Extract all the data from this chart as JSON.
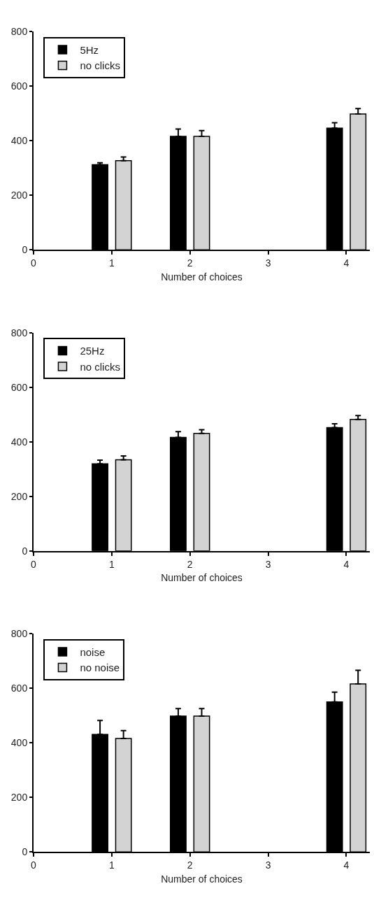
{
  "chart_data": [
    {
      "type": "bar",
      "xlabel": "Number of choices",
      "xlim": [
        0,
        4.3
      ],
      "xticks": [
        0,
        1,
        2,
        3,
        4
      ],
      "ylim": [
        0,
        800
      ],
      "yticks": [
        0,
        200,
        400,
        600,
        800
      ],
      "legend": "top left",
      "series": [
        {
          "name": "5Hz",
          "color": "#000000",
          "x": [
            0.85,
            1.85,
            3.85
          ],
          "values": [
            312,
            416,
            446
          ],
          "errors": [
            [
              312,
              319
            ],
            [
              416,
              443
            ],
            [
              446,
              466
            ]
          ]
        },
        {
          "name": "no clicks",
          "color": "#d3d3d3",
          "x": [
            1.15,
            2.15,
            4.15
          ],
          "values": [
            327,
            416,
            498
          ],
          "errors": [
            [
              327,
              340
            ],
            [
              416,
              437
            ],
            [
              498,
              518
            ]
          ]
        }
      ]
    },
    {
      "type": "bar",
      "xlabel": "Number of choices",
      "xlim": [
        0,
        4.3
      ],
      "xticks": [
        0,
        1,
        2,
        3,
        4
      ],
      "ylim": [
        0,
        800
      ],
      "yticks": [
        0,
        200,
        400,
        600,
        800
      ],
      "legend": "top left",
      "series": [
        {
          "name": "25Hz",
          "color": "#000000",
          "x": [
            0.85,
            1.85,
            3.85
          ],
          "values": [
            319,
            416,
            452
          ],
          "errors": [
            [
              319,
              333
            ],
            [
              416,
              437
            ],
            [
              452,
              466
            ]
          ]
        },
        {
          "name": "no clicks",
          "color": "#d3d3d3",
          "x": [
            1.15,
            2.15,
            4.15
          ],
          "values": [
            334,
            431,
            482
          ],
          "errors": [
            [
              334,
              348
            ],
            [
              431,
              444
            ],
            [
              482,
              496
            ]
          ]
        }
      ]
    },
    {
      "type": "bar",
      "xlabel": "Number of choices",
      "xlim": [
        0,
        4.3
      ],
      "xticks": [
        0,
        1,
        2,
        3,
        4
      ],
      "ylim": [
        0,
        800
      ],
      "yticks": [
        0,
        200,
        400,
        600,
        800
      ],
      "legend": "top left",
      "series": [
        {
          "name": "noise",
          "color": "#000000",
          "x": [
            0.85,
            1.85,
            3.85
          ],
          "values": [
            431,
            498,
            550
          ],
          "errors": [
            [
              431,
              482
            ],
            [
              498,
              526
            ],
            [
              550,
              586
            ]
          ]
        },
        {
          "name": "no noise",
          "color": "#d3d3d3",
          "x": [
            1.15,
            2.15,
            4.15
          ],
          "values": [
            416,
            498,
            616
          ],
          "errors": [
            [
              416,
              445
            ],
            [
              498,
              526
            ],
            [
              616,
              666
            ]
          ]
        }
      ]
    }
  ]
}
